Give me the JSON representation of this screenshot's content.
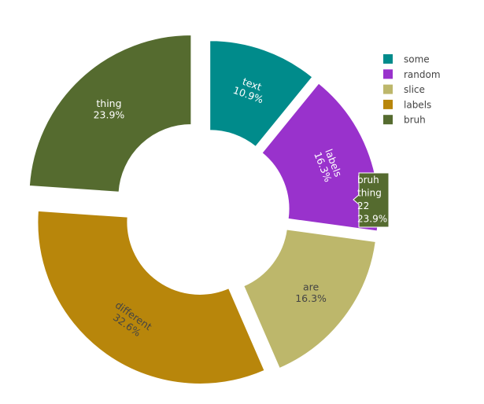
{
  "chart_data": {
    "type": "pie",
    "hole": true,
    "slices": [
      {
        "legend": "some",
        "text": "text",
        "value": 10,
        "percent": "10.9%",
        "color": "#008b8b",
        "label_color": "#ffffff",
        "rotate_label": true
      },
      {
        "legend": "random",
        "text": "labels",
        "value": 15,
        "percent": "16.3%",
        "color": "#9932cc",
        "label_color": "#ffffff",
        "rotate_label": true
      },
      {
        "legend": "slice",
        "text": "are",
        "value": 15,
        "percent": "16.3%",
        "color": "#bdb76b",
        "label_color": "#444444",
        "rotate_label": false
      },
      {
        "legend": "labels",
        "text": "different",
        "value": 30,
        "percent": "32.6%",
        "color": "#b8860b",
        "label_color": "#444444",
        "rotate_label": true
      },
      {
        "legend": "bruh",
        "text": "thing",
        "value": 22,
        "percent": "23.9%",
        "color": "#556b2f",
        "label_color": "#ffffff",
        "rotate_label": false
      }
    ],
    "legend_position": "top-right",
    "tooltip": {
      "lines": [
        "bruh",
        "thing",
        "22",
        "23.9%"
      ],
      "color": "#556b2f"
    }
  }
}
